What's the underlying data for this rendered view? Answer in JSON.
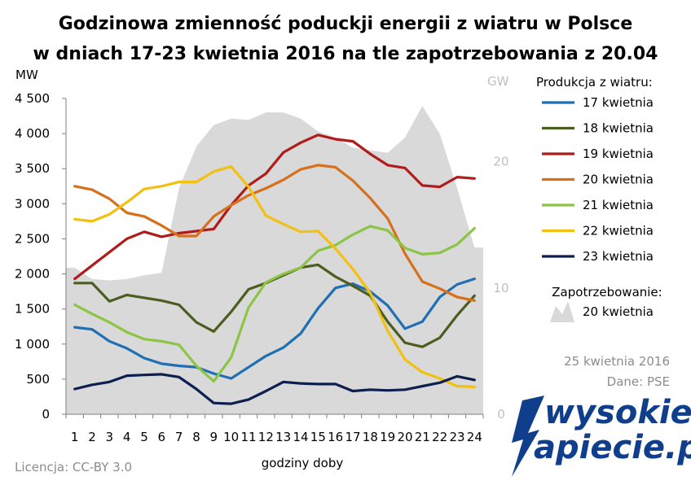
{
  "chart_data": {
    "type": "line",
    "title": "Godzinowa zmienność poduckji energii z wiatru  w Polsce",
    "subtitle": "w dniach 17-23 kwietnia 2016 na tle zapotrzebowania z 20.04",
    "xlabel": "godziny doby",
    "ylabel": "MW",
    "y2label": "GW",
    "x": [
      1,
      2,
      3,
      4,
      5,
      6,
      7,
      8,
      9,
      10,
      11,
      12,
      13,
      14,
      15,
      16,
      17,
      18,
      19,
      20,
      21,
      22,
      23,
      24
    ],
    "ylim": [
      0,
      4500
    ],
    "yticks": [
      "0",
      "500",
      "1 000",
      "1 500",
      "2 000",
      "2 500",
      "3 000",
      "3 500",
      "4 000",
      "4 500"
    ],
    "y2lim": [
      0,
      25
    ],
    "y2ticks": [
      "0",
      "10",
      "20"
    ],
    "legend_title": "Produkcja  z wiatru:",
    "series": [
      {
        "name": "17 kwietnia",
        "color": "#1f6fb4",
        "values": [
          1240,
          1210,
          1040,
          940,
          800,
          720,
          690,
          670,
          580,
          510,
          670,
          830,
          950,
          1150,
          1510,
          1800,
          1860,
          1750,
          1550,
          1220,
          1320,
          1670,
          1850,
          1930
        ]
      },
      {
        "name": "18 kwietnia",
        "color": "#4b5e1f",
        "values": [
          1870,
          1870,
          1610,
          1700,
          1660,
          1620,
          1560,
          1310,
          1180,
          1460,
          1780,
          1870,
          1980,
          2090,
          2130,
          1960,
          1830,
          1690,
          1320,
          1020,
          960,
          1090,
          1410,
          1690
        ]
      },
      {
        "name": "19 kwietnia",
        "color": "#b01c1c",
        "values": [
          1930,
          2120,
          2310,
          2500,
          2600,
          2530,
          2580,
          2610,
          2640,
          2980,
          3260,
          3430,
          3730,
          3870,
          3980,
          3920,
          3890,
          3710,
          3550,
          3510,
          3260,
          3240,
          3380,
          3360
        ]
      },
      {
        "name": "20 kwietnia",
        "color": "#d6701c",
        "values": [
          3250,
          3200,
          3070,
          2870,
          2820,
          2690,
          2540,
          2540,
          2820,
          2980,
          3120,
          3220,
          3340,
          3490,
          3550,
          3520,
          3330,
          3080,
          2790,
          2290,
          1890,
          1790,
          1670,
          1620
        ]
      },
      {
        "name": "21 kwietnia",
        "color": "#8cc444",
        "values": [
          1560,
          1430,
          1310,
          1170,
          1070,
          1040,
          990,
          690,
          470,
          810,
          1520,
          1880,
          2000,
          2090,
          2330,
          2410,
          2560,
          2680,
          2620,
          2370,
          2280,
          2300,
          2420,
          2650
        ]
      },
      {
        "name": "22 kwietnia",
        "color": "#f2c012",
        "values": [
          2780,
          2750,
          2850,
          3020,
          3210,
          3250,
          3310,
          3310,
          3460,
          3530,
          3240,
          2830,
          2710,
          2600,
          2610,
          2360,
          2070,
          1730,
          1190,
          780,
          600,
          510,
          400,
          390
        ]
      },
      {
        "name": "23 kwietnia",
        "color": "#0d1f4e",
        "values": [
          360,
          420,
          460,
          550,
          560,
          570,
          530,
          360,
          160,
          150,
          210,
          330,
          460,
          440,
          430,
          430,
          330,
          350,
          340,
          350,
          400,
          450,
          540,
          490
        ]
      }
    ],
    "area": {
      "name": "20 kwietnia",
      "label": "Zapotrzebowanie:",
      "color": "#d9d9d9",
      "unit": "GW",
      "values": [
        11.6,
        10.7,
        10.6,
        10.7,
        11.0,
        11.2,
        17.9,
        21.2,
        22.9,
        23.4,
        23.3,
        23.9,
        23.9,
        23.4,
        22.4,
        21.9,
        21.1,
        20.9,
        20.7,
        21.9,
        24.4,
        22.2,
        17.9,
        13.2
      ]
    },
    "grid": false,
    "legend_position": "right"
  },
  "annotations": {
    "date": "25 kwietnia 2016",
    "source": "Dane: PSE",
    "license": "Licencja: CC-BY 3.0"
  },
  "logo": {
    "line1": "wysokie",
    "line2": "apiecie.pl"
  }
}
